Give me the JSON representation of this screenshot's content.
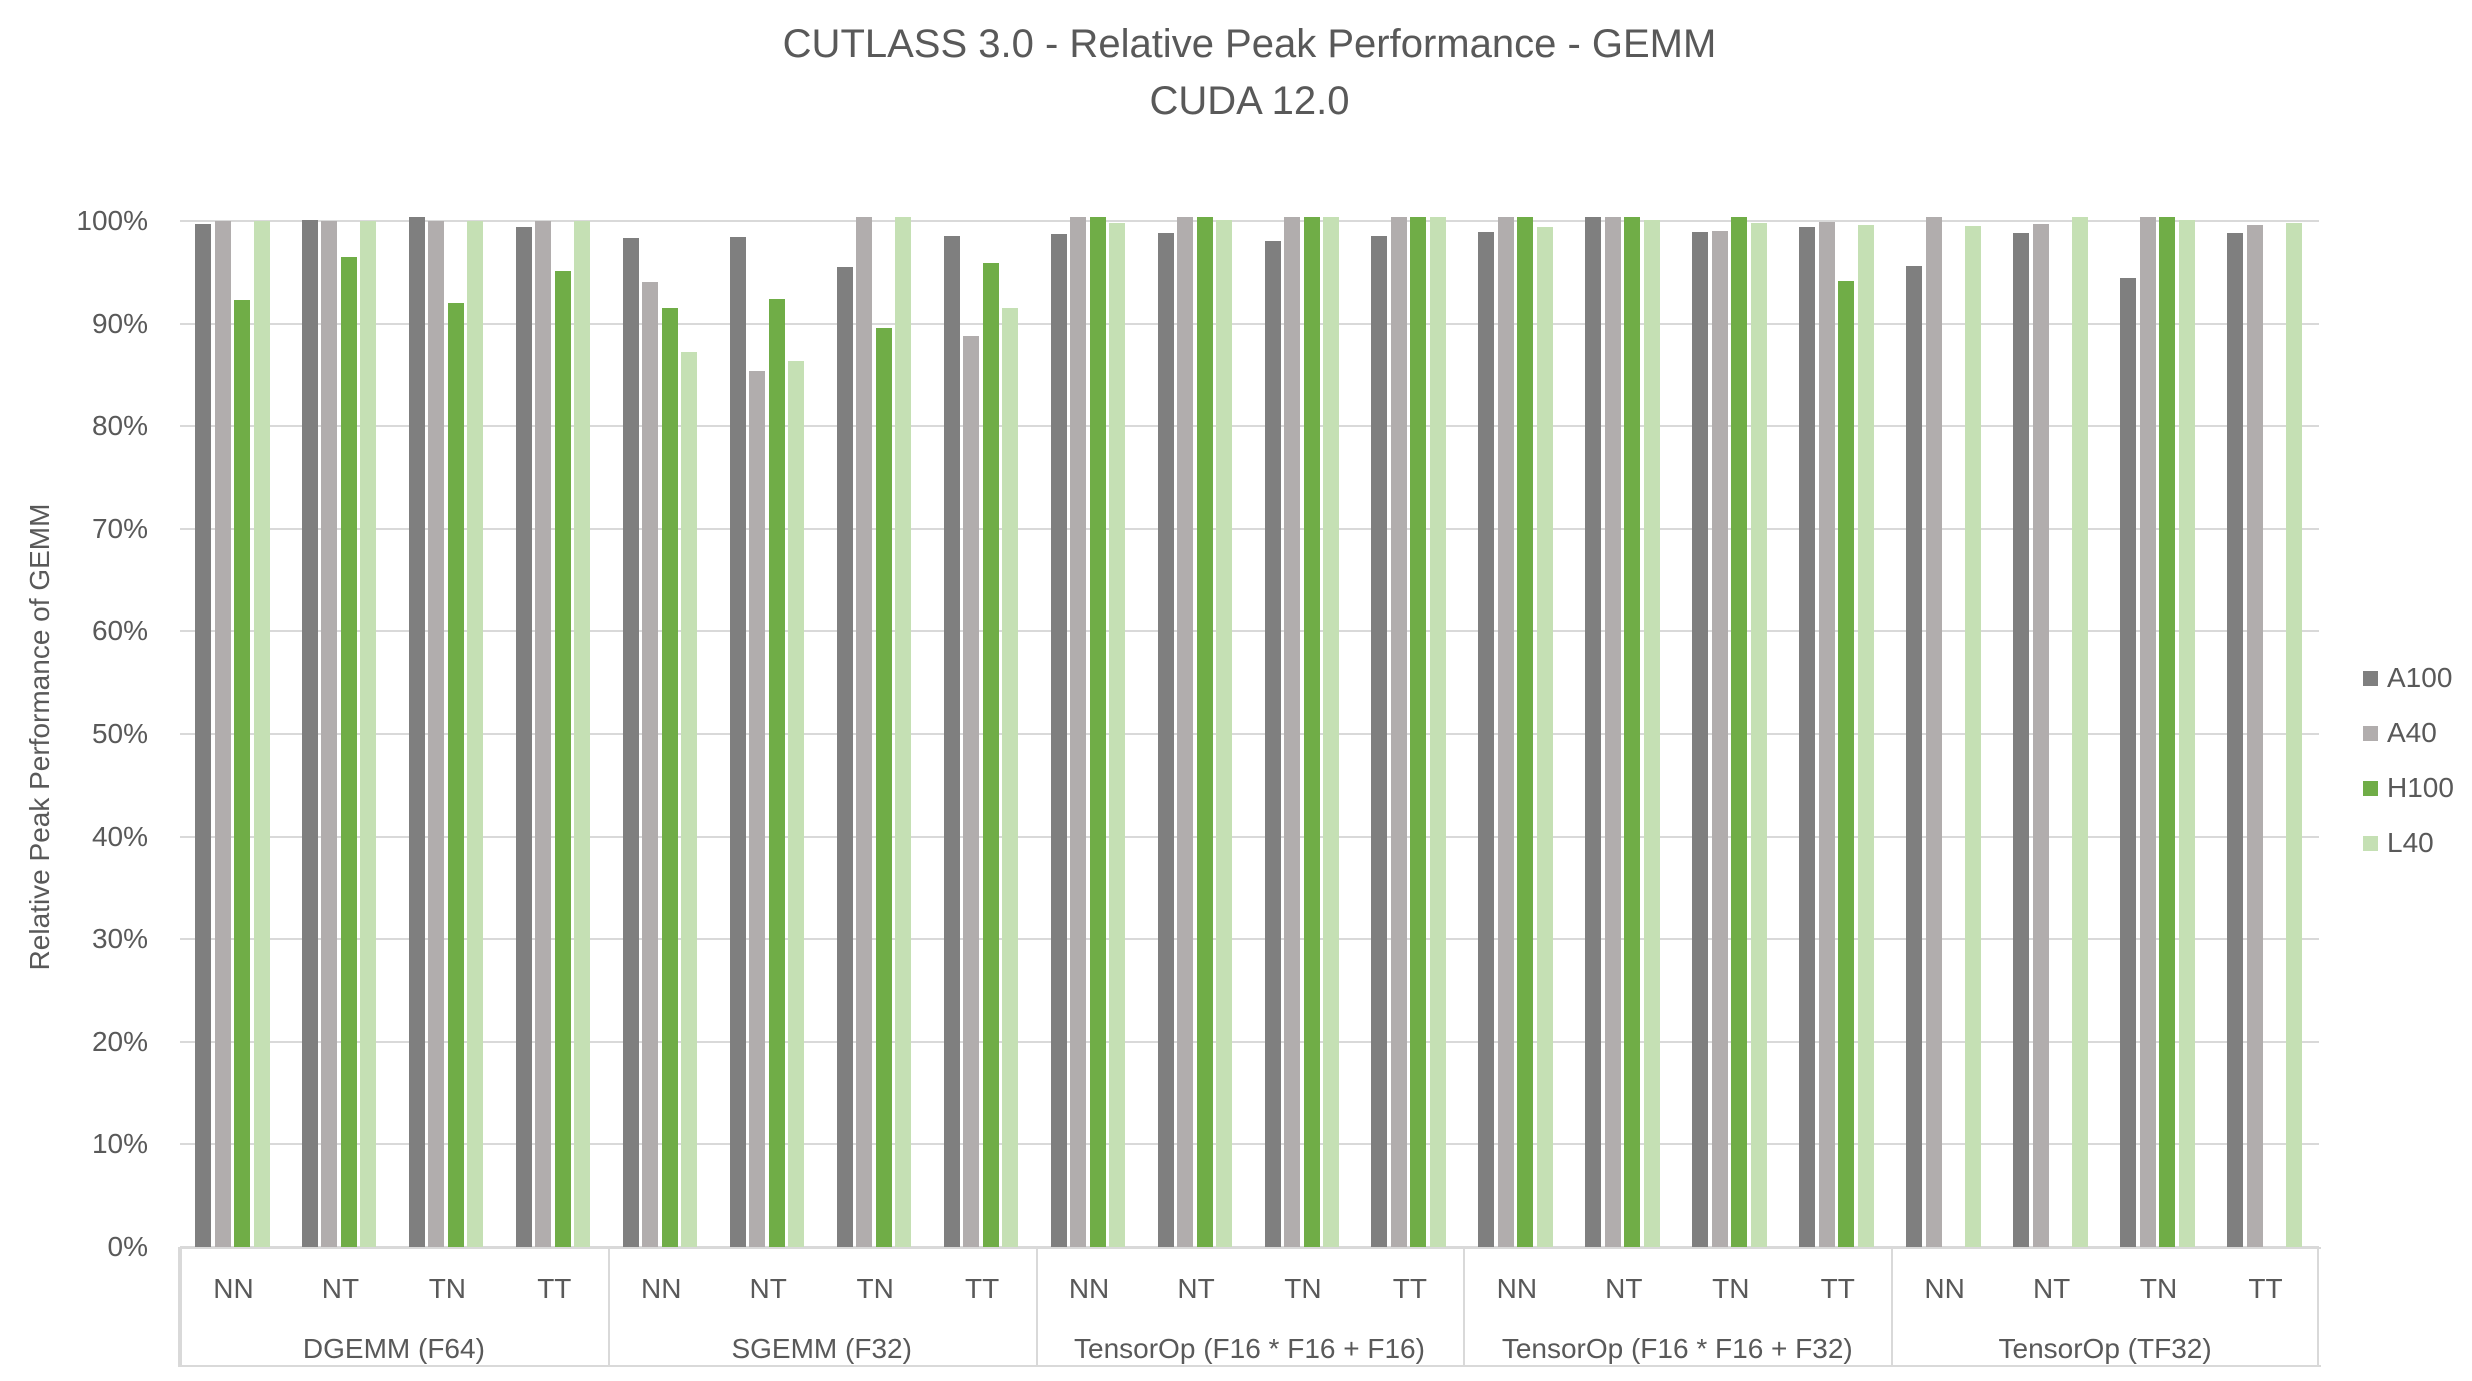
{
  "title": {
    "line1": "CUTLASS 3.0 - Relative Peak Performance - GEMM",
    "line2": "CUDA 12.0"
  },
  "y_axis": {
    "title": "Relative Peak Performance of GEMM",
    "tick_suffix": "%"
  },
  "legend": {
    "position": "right",
    "items": [
      {
        "label": "A100",
        "color": "#7f7f7f"
      },
      {
        "label": "A40",
        "color": "#b1adad"
      },
      {
        "label": "H100",
        "color": "#70ad47"
      },
      {
        "label": "L40",
        "color": "#c5e0b4"
      }
    ]
  },
  "colors": {
    "text": "#595959",
    "gridline": "#d9d9d9",
    "background": "#ffffff"
  },
  "chart_data": {
    "type": "bar",
    "title": "CUTLASS 3.0 - Relative Peak Performance - GEMM",
    "subtitle": "CUDA 12.0",
    "xlabel": "",
    "ylabel": "Relative Peak Performance of GEMM",
    "value_unit": "%",
    "ylim": [
      0,
      100
    ],
    "yticks": [
      0,
      10,
      20,
      30,
      40,
      50,
      60,
      70,
      80,
      90,
      100
    ],
    "grid": true,
    "legend_position": "right",
    "groups": [
      "DGEMM (F64)",
      "SGEMM (F32)",
      "TensorOp (F16 * F16 + F16)",
      "TensorOp (F16 * F16 + F32)",
      "TensorOp (TF32)"
    ],
    "categories_per_group": [
      "NN",
      "NT",
      "TN",
      "TT"
    ],
    "series": [
      {
        "name": "A100",
        "color": "#7f7f7f",
        "values": [
          [
            99.7,
            100.1,
            100.4,
            99.4
          ],
          [
            98.3,
            98.4,
            95.5,
            98.5
          ],
          [
            98.7,
            98.8,
            98.1,
            98.5
          ],
          [
            98.9,
            100.4,
            98.9,
            99.4
          ],
          [
            95.6,
            98.8,
            94.4,
            98.8
          ]
        ]
      },
      {
        "name": "A40",
        "color": "#b1adad",
        "values": [
          [
            100.0,
            100.0,
            100.0,
            100.0
          ],
          [
            94.1,
            85.4,
            100.4,
            88.8
          ],
          [
            100.4,
            100.4,
            100.4,
            100.4
          ],
          [
            100.4,
            100.4,
            99.0,
            99.9
          ],
          [
            100.4,
            99.7,
            100.4,
            99.6
          ]
        ]
      },
      {
        "name": "H100",
        "color": "#70ad47",
        "values": [
          [
            92.3,
            96.5,
            92.0,
            95.1
          ],
          [
            91.5,
            92.4,
            89.6,
            95.9
          ],
          [
            100.4,
            100.4,
            100.4,
            100.4
          ],
          [
            100.4,
            100.4,
            100.4,
            94.2
          ],
          [
            null,
            null,
            100.4,
            null
          ]
        ]
      },
      {
        "name": "L40",
        "color": "#c5e0b4",
        "values": [
          [
            100.0,
            100.0,
            100.0,
            100.0
          ],
          [
            87.2,
            86.4,
            100.4,
            91.5
          ],
          [
            99.8,
            100.1,
            100.4,
            100.4
          ],
          [
            99.4,
            100.1,
            99.8,
            99.6
          ],
          [
            99.5,
            100.4,
            100.1,
            99.8
          ]
        ]
      }
    ]
  }
}
